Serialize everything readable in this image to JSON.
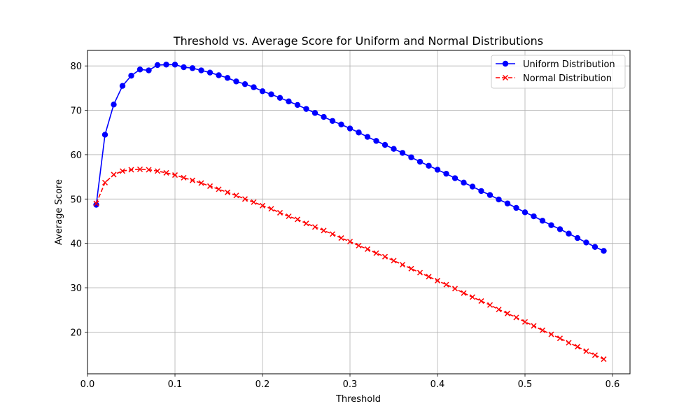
{
  "chart_data": {
    "type": "line",
    "title": "Threshold vs. Average Score for Uniform and Normal Distributions",
    "xlabel": "Threshold",
    "ylabel": "Average Score",
    "xlim": [
      -0.0,
      0.62
    ],
    "ylim": [
      10.6,
      83.5
    ],
    "xticks": [
      0.0,
      0.1,
      0.2,
      0.3,
      0.4,
      0.5,
      0.6
    ],
    "xtick_labels": [
      "0.0",
      "0.1",
      "0.2",
      "0.3",
      "0.4",
      "0.5",
      "0.6"
    ],
    "yticks": [
      20,
      30,
      40,
      50,
      60,
      70,
      80
    ],
    "ytick_labels": [
      "20",
      "30",
      "40",
      "50",
      "60",
      "70",
      "80"
    ],
    "grid": true,
    "legend_position": "top-right",
    "x": [
      0.01,
      0.02,
      0.03,
      0.04,
      0.05,
      0.06,
      0.07,
      0.08,
      0.09,
      0.1,
      0.11,
      0.12,
      0.13,
      0.14,
      0.15,
      0.16,
      0.17,
      0.18,
      0.19,
      0.2,
      0.21,
      0.22,
      0.23,
      0.24,
      0.25,
      0.26,
      0.27,
      0.28,
      0.29,
      0.3,
      0.31,
      0.32,
      0.33,
      0.34,
      0.35,
      0.36,
      0.37,
      0.38,
      0.39,
      0.4,
      0.41,
      0.42,
      0.43,
      0.44,
      0.45,
      0.46,
      0.47,
      0.48,
      0.49,
      0.5,
      0.51,
      0.52,
      0.53,
      0.54,
      0.55,
      0.56,
      0.57,
      0.58,
      0.59
    ],
    "series": [
      {
        "name": "Uniform Distribution",
        "color": "#0000ff",
        "marker": "circle",
        "line_style": "solid",
        "values": [
          48.7,
          64.5,
          71.3,
          75.5,
          77.8,
          79.2,
          79.0,
          80.2,
          80.3,
          80.3,
          79.7,
          79.5,
          79.0,
          78.5,
          77.9,
          77.3,
          76.5,
          75.9,
          75.2,
          74.3,
          73.6,
          72.8,
          72.0,
          71.2,
          70.3,
          69.4,
          68.5,
          67.6,
          66.8,
          65.9,
          65.0,
          64.0,
          63.1,
          62.2,
          61.3,
          60.4,
          59.4,
          58.4,
          57.5,
          56.6,
          55.7,
          54.7,
          53.7,
          52.8,
          51.8,
          50.9,
          49.9,
          49.0,
          48.0,
          47.0,
          46.1,
          45.1,
          44.1,
          43.2,
          42.2,
          41.2,
          40.2,
          39.2,
          38.3
        ]
      },
      {
        "name": "Normal Distribution",
        "color": "#ff0000",
        "marker": "x",
        "line_style": "dashed",
        "values": [
          49.0,
          53.7,
          55.5,
          56.3,
          56.6,
          56.7,
          56.6,
          56.3,
          55.9,
          55.4,
          54.8,
          54.2,
          53.6,
          52.9,
          52.2,
          51.5,
          50.8,
          50.0,
          49.3,
          48.5,
          47.8,
          46.9,
          46.1,
          45.4,
          44.5,
          43.7,
          42.9,
          42.1,
          41.2,
          40.4,
          39.5,
          38.7,
          37.8,
          37.0,
          36.1,
          35.2,
          34.3,
          33.4,
          32.5,
          31.6,
          30.7,
          29.8,
          28.8,
          27.9,
          27.0,
          26.1,
          25.1,
          24.2,
          23.3,
          22.3,
          21.4,
          20.4,
          19.5,
          18.6,
          17.6,
          16.7,
          15.7,
          14.8,
          13.9
        ]
      }
    ]
  }
}
